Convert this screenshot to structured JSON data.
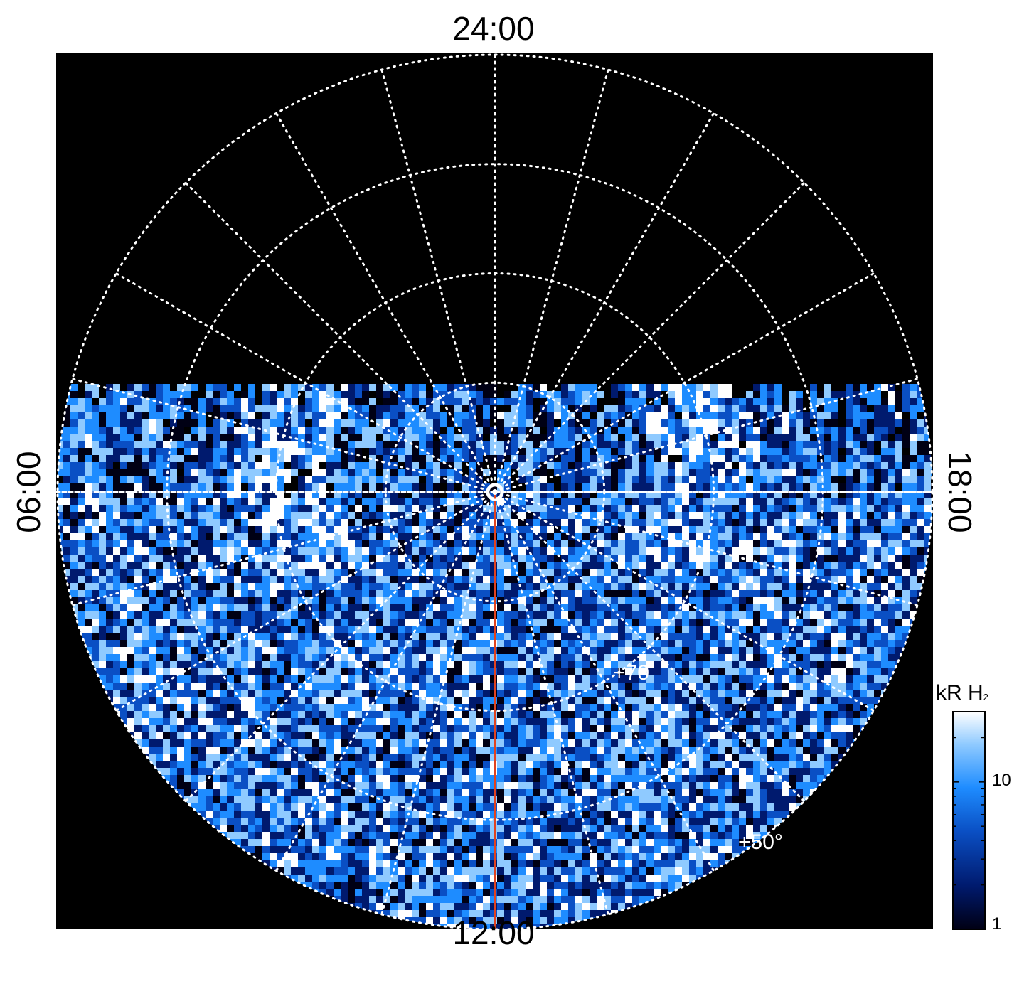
{
  "chart_data": {
    "type": "heatmap",
    "projection": "polar",
    "pole": "north",
    "local_time_labels": {
      "top": "24:00",
      "bottom": "12:00",
      "left": "06:00",
      "right": "18:00"
    },
    "latitude_circles_deg": [
      80,
      70,
      60,
      50
    ],
    "latitude_annotations": [
      "+70",
      "+50°"
    ],
    "meridian_spacing_hours": 1,
    "grid": true,
    "grid_style": "dotted white",
    "background": "#000000",
    "colorbar": {
      "title": "kR H",
      "title_subscript": "2",
      "scale": "log",
      "range": [
        1,
        30
      ],
      "tick_values": [
        1,
        10
      ],
      "tick_labels": [
        "1",
        "10"
      ],
      "placement": "right",
      "colors": [
        "#000014",
        "#001a6e",
        "#0a4fc4",
        "#1e8cff",
        "#8fcaff",
        "#ffffff"
      ]
    },
    "overlay_line": {
      "color": "#e0431f",
      "from": "pole",
      "to": "12:00"
    }
  }
}
